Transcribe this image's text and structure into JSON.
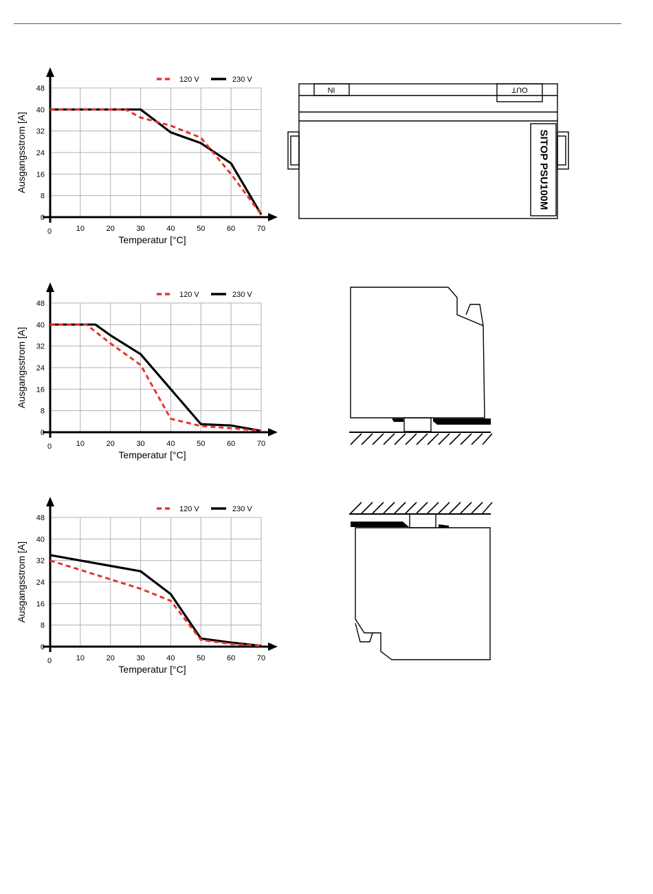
{
  "chart_data": [
    {
      "type": "line",
      "xlabel": "Temperatur [°C]",
      "ylabel": "Ausgangsstrom [A]",
      "xlim": [
        0,
        70
      ],
      "ylim": [
        0,
        48
      ],
      "xticks": [
        0,
        10,
        20,
        30,
        40,
        50,
        60,
        70
      ],
      "yticks": [
        0,
        8,
        16,
        24,
        32,
        40,
        48
      ],
      "grid": true,
      "legend": "top-right",
      "series": [
        {
          "name": "120 V",
          "color": "#e8322a",
          "dash": true,
          "x": [
            0,
            25,
            30,
            40,
            50,
            60,
            70
          ],
          "y": [
            40,
            40,
            37,
            34,
            29.5,
            16,
            1
          ]
        },
        {
          "name": "230 V",
          "color": "#000000",
          "dash": false,
          "x": [
            0,
            30,
            40,
            50,
            60,
            70
          ],
          "y": [
            40,
            40,
            31.5,
            27.5,
            20,
            1
          ]
        }
      ]
    },
    {
      "type": "line",
      "xlabel": "Temperatur [°C]",
      "ylabel": "Ausgangsstrom [A]",
      "xlim": [
        0,
        70
      ],
      "ylim": [
        0,
        48
      ],
      "xticks": [
        0,
        10,
        20,
        30,
        40,
        50,
        60,
        70
      ],
      "yticks": [
        0,
        8,
        16,
        24,
        32,
        40,
        48
      ],
      "grid": true,
      "legend": "top-right",
      "series": [
        {
          "name": "120 V",
          "color": "#e8322a",
          "dash": true,
          "x": [
            0,
            12,
            20,
            30,
            40,
            50,
            60,
            70
          ],
          "y": [
            40,
            40,
            33,
            25,
            5,
            2.3,
            1.5,
            0.5
          ]
        },
        {
          "name": "230 V",
          "color": "#000000",
          "dash": false,
          "x": [
            0,
            15,
            20,
            30,
            40,
            50,
            60,
            70
          ],
          "y": [
            40,
            40,
            36,
            29,
            16,
            3,
            2.5,
            0.5
          ]
        }
      ]
    },
    {
      "type": "line",
      "xlabel": "Temperatur [°C]",
      "ylabel": "Ausgangsstrom [A]",
      "xlim": [
        0,
        70
      ],
      "ylim": [
        0,
        48
      ],
      "xticks": [
        0,
        10,
        20,
        30,
        40,
        50,
        60,
        70
      ],
      "yticks": [
        0,
        8,
        16,
        24,
        32,
        40,
        48
      ],
      "grid": true,
      "legend": "top-right",
      "series": [
        {
          "name": "120 V",
          "color": "#e8322a",
          "dash": true,
          "x": [
            0,
            10,
            20,
            30,
            40,
            50,
            60,
            70
          ],
          "y": [
            32,
            28.5,
            25,
            21.5,
            17,
            2.5,
            1,
            0.3
          ]
        },
        {
          "name": "230 V",
          "color": "#000000",
          "dash": false,
          "x": [
            0,
            10,
            20,
            30,
            40,
            50,
            60,
            70
          ],
          "y": [
            34,
            32,
            30,
            28,
            19.5,
            3,
            1.5,
            0.3
          ]
        }
      ]
    }
  ],
  "device_front": {
    "in_label": "IN",
    "out_label": "OUT",
    "product_label": "SITOP PSU100M"
  }
}
